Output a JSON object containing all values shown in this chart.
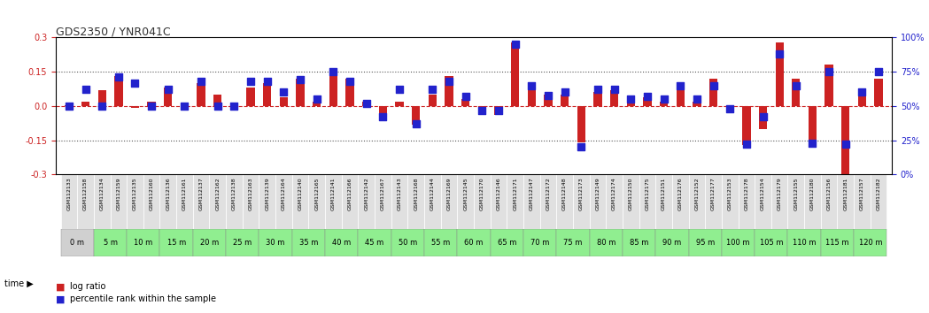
{
  "title": "GDS2350 / YNR041C",
  "gsm_labels": [
    "GSM112133",
    "GSM112158",
    "GSM112134",
    "GSM112159",
    "GSM112135",
    "GSM112160",
    "GSM112136",
    "GSM112161",
    "GSM112137",
    "GSM112162",
    "GSM112138",
    "GSM112163",
    "GSM112139",
    "GSM112164",
    "GSM112140",
    "GSM112165",
    "GSM112141",
    "GSM112166",
    "GSM112142",
    "GSM112167",
    "GSM112143",
    "GSM112168",
    "GSM112144",
    "GSM112169",
    "GSM112145",
    "GSM112170",
    "GSM112146",
    "GSM112171",
    "GSM112147",
    "GSM112172",
    "GSM112148",
    "GSM112173",
    "GSM112149",
    "GSM112174",
    "GSM112150",
    "GSM112175",
    "GSM112151",
    "GSM112176",
    "GSM112152",
    "GSM112177",
    "GSM112153",
    "GSM112178",
    "GSM112154",
    "GSM112179",
    "GSM112155",
    "GSM112180",
    "GSM112156",
    "GSM112181",
    "GSM112157",
    "GSM112182"
  ],
  "time_labels": [
    "0 m",
    "5 m",
    "10 m",
    "15 m",
    "20 m",
    "25 m",
    "30 m",
    "35 m",
    "40 m",
    "45 m",
    "50 m",
    "55 m",
    "60 m",
    "65 m",
    "70 m",
    "75 m",
    "80 m",
    "85 m",
    "90 m",
    "95 m",
    "100 m",
    "105 m",
    "110 m",
    "115 m",
    "120 m"
  ],
  "log_ratio": [
    0.005,
    0.02,
    0.07,
    0.13,
    -0.01,
    0.02,
    0.08,
    -0.01,
    0.1,
    0.05,
    -0.01,
    0.08,
    0.1,
    0.04,
    0.12,
    0.02,
    0.13,
    0.12,
    0.02,
    -0.04,
    0.02,
    -0.08,
    0.05,
    0.13,
    0.03,
    -0.03,
    -0.04,
    0.28,
    0.1,
    0.05,
    0.05,
    -0.16,
    0.06,
    0.07,
    0.03,
    0.04,
    0.02,
    0.09,
    0.02,
    0.12,
    -0.02,
    -0.17,
    -0.1,
    0.28,
    0.12,
    -0.18,
    0.18,
    -0.3,
    0.06,
    0.12
  ],
  "percentile_rank": [
    50,
    62,
    50,
    71,
    67,
    50,
    62,
    50,
    68,
    50,
    50,
    68,
    68,
    60,
    69,
    55,
    75,
    68,
    52,
    42,
    62,
    37,
    62,
    68,
    57,
    47,
    47,
    95,
    65,
    58,
    60,
    20,
    62,
    62,
    55,
    57,
    55,
    65,
    55,
    65,
    48,
    22,
    42,
    88,
    65,
    23,
    75,
    22,
    60,
    75
  ],
  "ylim": [
    -0.3,
    0.3
  ],
  "yticks": [
    -0.3,
    -0.15,
    0.0,
    0.15,
    0.3
  ],
  "y2ticks": [
    0,
    25,
    50,
    75,
    100
  ],
  "bar_color": "#cc2222",
  "dot_color": "#2222cc",
  "bg_color": "#ffffff",
  "plot_area_bg": "#ffffff",
  "dotted_line_color": "#555555",
  "zero_line_color": "#cc2222",
  "title_color": "#333333",
  "left_axis_color": "#cc2222",
  "right_axis_color": "#2222cc",
  "gsm_bg_color": "#e0e0e0",
  "time_bg_color_odd": "#ffffff",
  "time_bg_color_even": "#90ee90",
  "legend_log_ratio_color": "#cc2222",
  "legend_percentile_color": "#2222cc"
}
